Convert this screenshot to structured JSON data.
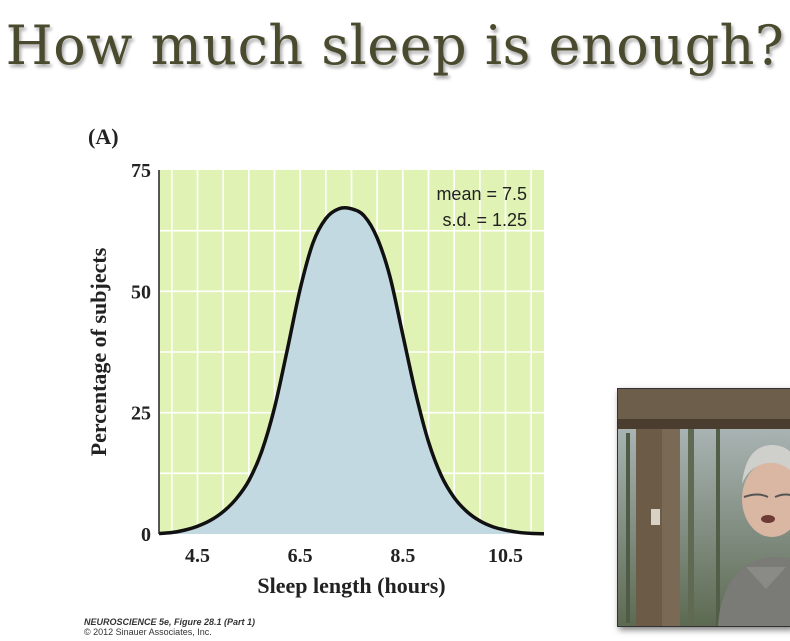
{
  "slide": {
    "title": "How much sleep is enough?",
    "panel_label": "(A)",
    "credit_line1": "NEUROSCIENCE 5e, Figure 28.1 (Part 1)",
    "credit_line2": "© 2012 Sinauer Associates, Inc."
  },
  "chart_data": {
    "type": "area",
    "title": "",
    "xlabel": "Sleep length (hours)",
    "ylabel": "Percentage of subjects",
    "xlim": [
      3.75,
      11.25
    ],
    "ylim": [
      0,
      75
    ],
    "xticks": [
      4.5,
      6.5,
      8.5,
      10.5
    ],
    "yticks": [
      0,
      25,
      50,
      75
    ],
    "grid": true,
    "annotations": [
      "mean = 7.5",
      "s.d. = 1.25"
    ],
    "series": [
      {
        "x": [
          3.75,
          4.0,
          4.25,
          4.5,
          4.75,
          5.0,
          5.25,
          5.5,
          5.75,
          6.0,
          6.25,
          6.5,
          6.75,
          7.0,
          7.25,
          7.5,
          7.75,
          8.0,
          8.25,
          8.5,
          8.75,
          9.0,
          9.25,
          9.5,
          9.75,
          10.0,
          10.25,
          10.5,
          10.75,
          11.0,
          11.25
        ],
        "y": [
          0.1,
          0.3,
          0.8,
          1.6,
          2.8,
          4.6,
          7.2,
          11.0,
          17.0,
          26.0,
          38.0,
          50.5,
          60.0,
          65.0,
          67.0,
          67.0,
          65.5,
          61.0,
          53.0,
          41.0,
          29.0,
          19.0,
          12.0,
          7.5,
          4.6,
          2.7,
          1.5,
          0.8,
          0.35,
          0.12,
          0.05
        ]
      }
    ],
    "colors": {
      "background": "#e0f3b5",
      "fill": "#c3d9e1",
      "line": "#111111",
      "grid": "#ffffff"
    }
  }
}
